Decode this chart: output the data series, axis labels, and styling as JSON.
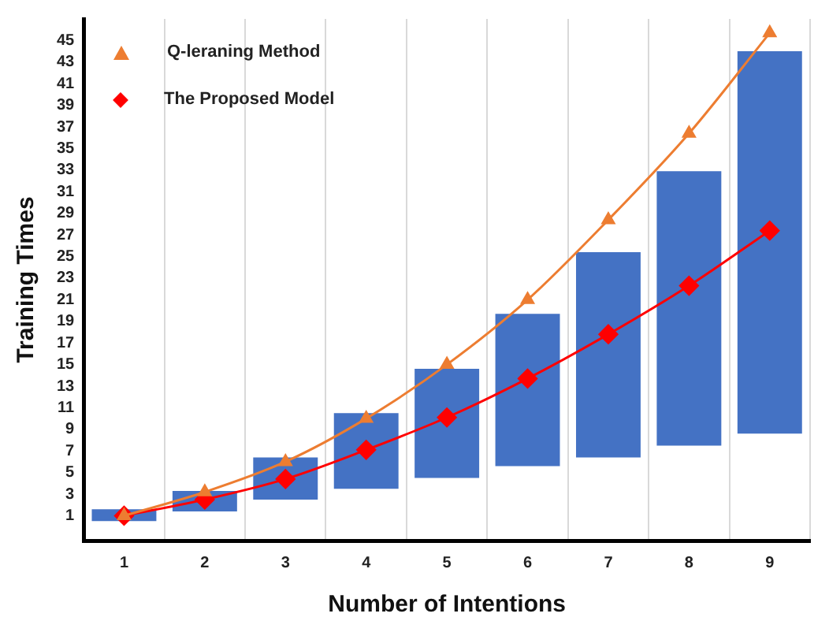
{
  "chart_data": {
    "type": "line",
    "xlabel": "Number of Intentions",
    "ylabel": "Training Times",
    "categories": [
      "1",
      "2",
      "3",
      "4",
      "5",
      "6",
      "7",
      "8",
      "9"
    ],
    "ylim": [
      -1.3,
      47
    ],
    "yticks": [
      1,
      3,
      5,
      7,
      9,
      11,
      13,
      15,
      17,
      19,
      21,
      23,
      25,
      27,
      29,
      31,
      33,
      35,
      37,
      39,
      41,
      43,
      45
    ],
    "grid": "x",
    "legend": "top left",
    "series": [
      {
        "type": "bar",
        "color": "#4472c4",
        "base": [
          0.5,
          1.4,
          2.5,
          3.5,
          4.5,
          5.6,
          6.4,
          7.5,
          8.6
        ],
        "values": [
          1.1,
          1.9,
          3.9,
          7,
          10.1,
          14.1,
          19,
          25.4,
          35.4
        ]
      },
      {
        "name": "Q-leraning Method",
        "color": "#ed7d31",
        "marker": "triangle",
        "values": [
          1,
          3.2,
          6,
          10,
          15,
          21,
          28.4,
          36.4,
          45.7
        ]
      },
      {
        "name": "The Proposed Model",
        "color": "#ff0000",
        "marker": "diamond",
        "values": [
          1,
          2.5,
          4.4,
          7.1,
          10.1,
          13.7,
          17.8,
          22.3,
          27.4
        ]
      }
    ]
  }
}
